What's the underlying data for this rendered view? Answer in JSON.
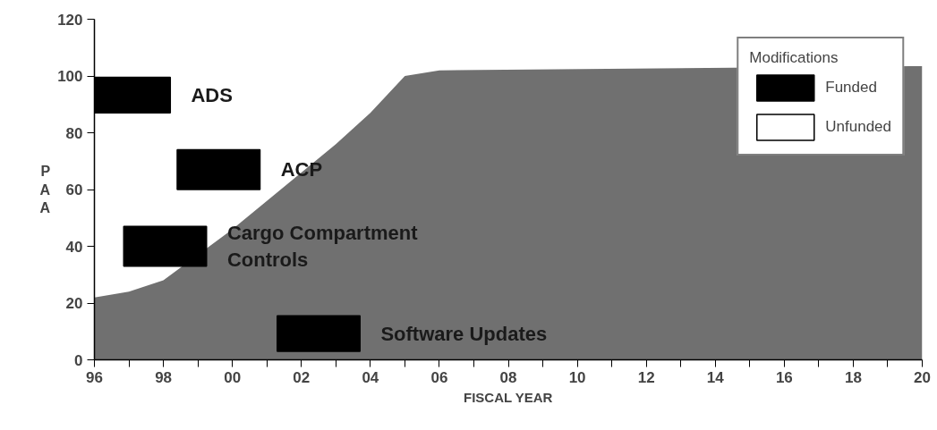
{
  "chart_data": {
    "type": "area",
    "xlabel": "FISCAL YEAR",
    "ylabel": "PAA",
    "legend_title": "Modifications",
    "xlim": [
      1996,
      2020
    ],
    "ylim": [
      0,
      120
    ],
    "xticks": [
      {
        "value": 1996,
        "label": "96"
      },
      {
        "value": 1997,
        "label": null
      },
      {
        "value": 1998,
        "label": "98"
      },
      {
        "value": 1999,
        "label": null
      },
      {
        "value": 2000,
        "label": "00"
      },
      {
        "value": 2001,
        "label": null
      },
      {
        "value": 2002,
        "label": "02"
      },
      {
        "value": 2003,
        "label": null
      },
      {
        "value": 2004,
        "label": "04"
      },
      {
        "value": 2005,
        "label": null
      },
      {
        "value": 2006,
        "label": "06"
      },
      {
        "value": 2007,
        "label": null
      },
      {
        "value": 2008,
        "label": "08"
      },
      {
        "value": 2009,
        "label": null
      },
      {
        "value": 2010,
        "label": "10"
      },
      {
        "value": 2011,
        "label": null
      },
      {
        "value": 2012,
        "label": "12"
      },
      {
        "value": 2013,
        "label": null
      },
      {
        "value": 2014,
        "label": "14"
      },
      {
        "value": 2015,
        "label": null
      },
      {
        "value": 2016,
        "label": "16"
      },
      {
        "value": 2017,
        "label": null
      },
      {
        "value": 2018,
        "label": "18"
      },
      {
        "value": 2019,
        "label": null
      },
      {
        "value": 2020,
        "label": "20"
      }
    ],
    "yticks": [
      0,
      20,
      40,
      60,
      80,
      100,
      120
    ],
    "series": [
      {
        "color": "#707070",
        "x": [
          1996,
          1997,
          1998,
          2000,
          2001,
          2002,
          2003,
          2004,
          2005,
          2006,
          2020
        ],
        "values": [
          22,
          24,
          28,
          46,
          56,
          66,
          76,
          87,
          100,
          102,
          103.5
        ]
      },
      {
        "type": "bar",
        "name": "Funded",
        "color": "#000000",
        "x": [
          1997,
          1998.05,
          1999.6,
          2002.5
        ],
        "base": [
          87,
          33,
          60,
          3
        ],
        "values": [
          12.5,
          14,
          14,
          12.5
        ]
      },
      {
        "type": "bar",
        "name": "Unfunded",
        "color": "#ffffff",
        "x": [
          null
        ],
        "base": [
          null
        ],
        "values": [
          null
        ]
      }
    ],
    "annotations": [
      "ADS",
      "Cargo Compartment\nControls",
      "ACP",
      "Software Updates"
    ],
    "legend": "top right",
    "grid": false
  }
}
